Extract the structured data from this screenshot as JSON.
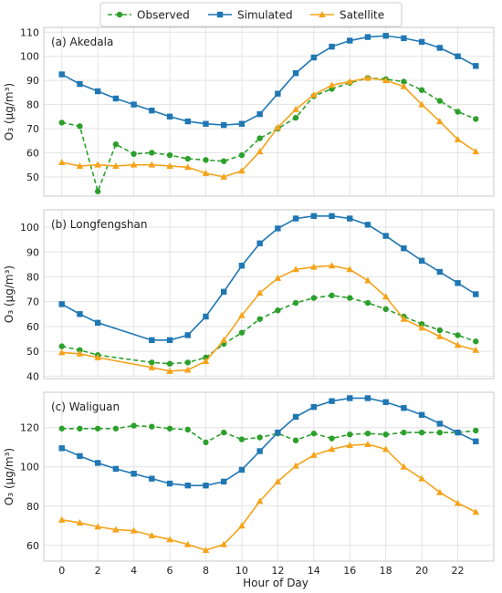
{
  "legend": {
    "items": [
      {
        "label": "Observed",
        "color": "#2ca02c",
        "dash": true,
        "marker": "circle"
      },
      {
        "label": "Simulated",
        "color": "#1f77b4",
        "dash": false,
        "marker": "square"
      },
      {
        "label": "Satellite",
        "color": "#f5a31a",
        "dash": false,
        "marker": "triangle"
      }
    ]
  },
  "xlabel": "Hour of Day",
  "chart_data": [
    {
      "type": "line",
      "panel_label": "(a) Akedala",
      "ylabel": "O₃ (μg/m³)",
      "x": [
        0,
        1,
        2,
        3,
        4,
        5,
        6,
        7,
        8,
        9,
        10,
        11,
        12,
        13,
        14,
        15,
        16,
        17,
        18,
        19,
        20,
        21,
        22,
        23
      ],
      "xticks": [
        0,
        2,
        4,
        6,
        8,
        10,
        12,
        14,
        16,
        18,
        20,
        22
      ],
      "xlim": [
        -1,
        24
      ],
      "ylim": [
        42,
        112
      ],
      "yticks": [
        50,
        60,
        70,
        80,
        90,
        100,
        110
      ],
      "grid": true,
      "series": [
        {
          "name": "Observed",
          "values": [
            72.5,
            71,
            44,
            63.5,
            59.5,
            60,
            59,
            57.5,
            57,
            56.5,
            59,
            66,
            70,
            74.5,
            83.5,
            86.5,
            89,
            91,
            90.5,
            89.5,
            86,
            81.5,
            77,
            74
          ]
        },
        {
          "name": "Simulated",
          "values": [
            92.5,
            88.5,
            85.5,
            82.5,
            80,
            77.5,
            75,
            73,
            72,
            71.5,
            72,
            76,
            84.5,
            93,
            99.5,
            104,
            106.5,
            108,
            108.5,
            107.5,
            106,
            103.5,
            100,
            96
          ]
        },
        {
          "name": "Satellite",
          "values": [
            56,
            54.5,
            55,
            54.5,
            55,
            55,
            54.5,
            54,
            51.5,
            50,
            52.5,
            60.5,
            70.5,
            78,
            84,
            88,
            89.5,
            91,
            90,
            87.5,
            80,
            73,
            65.5,
            60.5
          ]
        }
      ]
    },
    {
      "type": "line",
      "panel_label": "(b) Longfengshan",
      "ylabel": "O₃ (μg/m³)",
      "x": [
        0,
        1,
        2,
        5,
        6,
        7,
        8,
        9,
        10,
        11,
        12,
        13,
        14,
        15,
        16,
        17,
        18,
        19,
        20,
        21,
        22,
        23
      ],
      "xticks": [
        0,
        2,
        4,
        6,
        8,
        10,
        12,
        14,
        16,
        18,
        20,
        22
      ],
      "xlim": [
        -1,
        24
      ],
      "ylim": [
        39,
        107
      ],
      "yticks": [
        40,
        50,
        60,
        70,
        80,
        90,
        100
      ],
      "grid": true,
      "series": [
        {
          "name": "Observed",
          "values": [
            52,
            50.5,
            48.5,
            45.5,
            45,
            45.5,
            47.5,
            53,
            57.5,
            63,
            66.5,
            69.5,
            71.5,
            72.5,
            71.5,
            69.5,
            67,
            64,
            61,
            58.5,
            56.5,
            54
          ]
        },
        {
          "name": "Simulated",
          "values": [
            69,
            65,
            61.5,
            54.5,
            54.5,
            56.5,
            64,
            74,
            84.5,
            93.5,
            99.5,
            103.5,
            104.5,
            104.5,
            103.5,
            101,
            96.5,
            91.5,
            86.5,
            82,
            77.5,
            73
          ]
        },
        {
          "name": "Satellite",
          "values": [
            49.5,
            49,
            47.5,
            43.5,
            42,
            42.5,
            46,
            54.5,
            64.5,
            73.5,
            79.5,
            83,
            84,
            84.5,
            83,
            78.5,
            72,
            63,
            59.5,
            56,
            52.5,
            50.5
          ]
        }
      ]
    },
    {
      "type": "line",
      "panel_label": "(c) Waliguan",
      "ylabel": "O₃ (μg/m³)",
      "x": [
        0,
        1,
        2,
        3,
        4,
        5,
        6,
        7,
        8,
        9,
        10,
        11,
        12,
        13,
        14,
        15,
        16,
        17,
        18,
        19,
        20,
        21,
        22,
        23
      ],
      "xticks": [
        0,
        2,
        4,
        6,
        8,
        10,
        12,
        14,
        16,
        18,
        20,
        22
      ],
      "xlim": [
        -1,
        24
      ],
      "ylim": [
        52,
        138
      ],
      "yticks": [
        60,
        80,
        100,
        120
      ],
      "grid": true,
      "series": [
        {
          "name": "Observed",
          "values": [
            119.5,
            119.5,
            119.5,
            119.5,
            121,
            120.5,
            119.5,
            119,
            112.5,
            117.5,
            114,
            115,
            117,
            113.5,
            117,
            114.5,
            116.5,
            117,
            116.5,
            117.5,
            117.5,
            117.5,
            117.5,
            118.5
          ]
        },
        {
          "name": "Simulated",
          "values": [
            109.5,
            105.5,
            102,
            99,
            96.5,
            94,
            91.5,
            90.5,
            90.5,
            92.5,
            98.5,
            108,
            117.5,
            125.5,
            130.5,
            133.5,
            135,
            135,
            133,
            130,
            126.5,
            122,
            117.5,
            113
          ]
        },
        {
          "name": "Satellite",
          "values": [
            73,
            71.5,
            69.5,
            68,
            67.5,
            65,
            63,
            60.5,
            57.5,
            60.5,
            70,
            82.5,
            92.5,
            100.5,
            106,
            109,
            111,
            111.5,
            109,
            100,
            94,
            87,
            81.5,
            77
          ]
        }
      ]
    }
  ]
}
